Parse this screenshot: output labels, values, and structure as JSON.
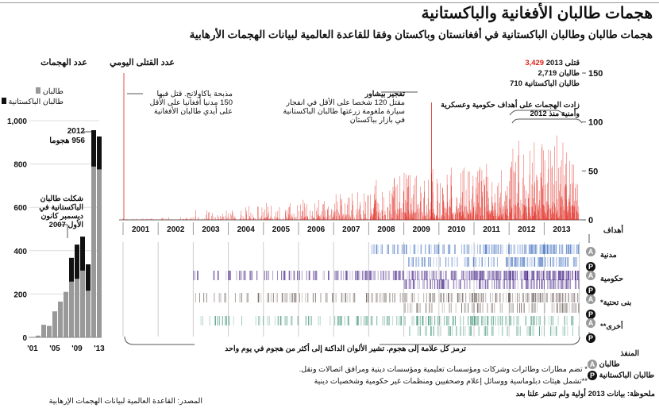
{
  "title": "هجمات طالبان الأفغانية والباكستانية",
  "subtitle": "هجمات طالبان وطالبان الباكستانية في أفغانستان وباكستان وفقا للقاعدة العالمية لبيانات الهجمات الأرهابية",
  "colors": {
    "taliban": "#999999",
    "pakistani_taliban": "#111111",
    "deaths": "#e0241b",
    "civil": "#3b6bbf",
    "government": "#4b2a8a",
    "infrastructure": "#5a4a44",
    "other": "#2e8a6a"
  },
  "chart_data": [
    {
      "type": "bar",
      "title": "عدد الهجمات",
      "categories": [
        "2001",
        "2002",
        "2003",
        "2004",
        "2005",
        "2006",
        "2007",
        "2008",
        "2009",
        "2010",
        "2011",
        "2012",
        "2013"
      ],
      "tick_labels": [
        "'01",
        "'05",
        "'09",
        "'13"
      ],
      "yticks": [
        "0",
        "200",
        "400",
        "600",
        "800",
        "1,000"
      ],
      "ylim": [
        0,
        1000
      ],
      "series": [
        {
          "name": "طالبان",
          "values": [
            2,
            8,
            58,
            53,
            120,
            165,
            210,
            257,
            270,
            308,
            215,
            788,
            775
          ]
        },
        {
          "name": "طالبان الباكستانية",
          "values": [
            0,
            0,
            0,
            0,
            0,
            0,
            0,
            110,
            158,
            157,
            122,
            168,
            152
          ]
        }
      ],
      "annotations": [
        {
          "text_1": "2012",
          "text_2": "956 هجوما"
        },
        {
          "text": "شكلت طالبان الباكستانية في ديسمبر كانون الأول 2007"
        }
      ]
    },
    {
      "type": "bar",
      "title": "عدد القتلى اليومي",
      "categories": [
        "2001",
        "2002",
        "2003",
        "2004",
        "2005",
        "2006",
        "2007",
        "2008",
        "2009",
        "2010",
        "2011",
        "2012",
        "2013"
      ],
      "yticks": [
        "0",
        "50",
        "100",
        "150"
      ],
      "ylim": [
        0,
        150
      ],
      "annotations": [
        {
          "year": 2001,
          "value": 150,
          "text": "مذبحة ياكاولانج. قتل فيها 150 مدنيا أفغانيا على الأقل على أيدي طالبان الأفغانية"
        },
        {
          "year": 2009,
          "value": 120,
          "title": "تفجير بيشاور",
          "text": "مقتل 120 شخصا على الأقل في انفجار سيارة ملغومة زرعتها طالبان الباكستانية في بازار بباكستان"
        },
        {
          "text": "زادت الهجمات على أهداف حكومية وعسكرية وأمنية منذ 2012"
        }
      ],
      "totals_2013": {
        "label_killed": "قتلى 2013",
        "killed": "3,429",
        "label_taliban": "طالبان",
        "taliban": "2,719",
        "label_pakistani": "طالبان الباكستانية",
        "pakistani": "710"
      }
    }
  ],
  "targets": {
    "heading": "أهداف",
    "rows": [
      "مدنية",
      "حكومية",
      "*بنى تحتية",
      "**أخرى"
    ],
    "badge_a": "A",
    "badge_p": "P"
  },
  "perpetrator": {
    "heading": "المنفذ",
    "a_label": "طالبان",
    "p_label": "طالبان الباكستانية"
  },
  "legend": {
    "taliban": "طالبان",
    "pakistani": "طالبان الباكستانية"
  },
  "strip_note": "ترمز كل علامة إلى هجوم. تشير الألوان الداكنة إلى أكثر من هجوم في يوم واحد",
  "footnote_1": "* تضم مطارات وطائرات وشركات ومؤسسات تعليمية ومؤسسات دينية ومرافق اتصالات ونقل.",
  "footnote_2": "**تشمل هيئات دبلوماسية ووسائل إعلام وصحفيين ومنظمات غير حكومية وشخصيات دينية",
  "note": "ملحوظة: بيانات 2013 أولية ولم تنشر علنا بعد",
  "source": "المصدر: القاعدة العالمية لبيانات الهجمات الإرهابية"
}
